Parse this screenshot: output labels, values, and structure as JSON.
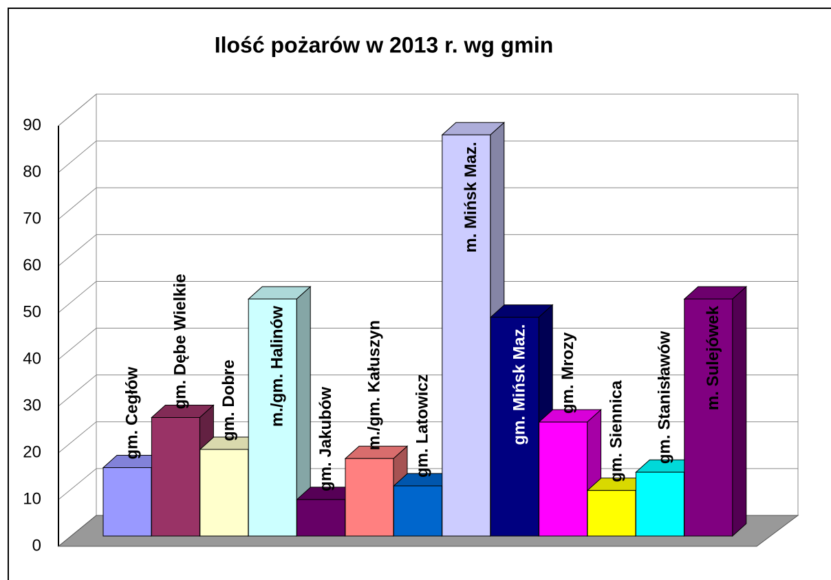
{
  "chart_data": {
    "type": "bar",
    "title": "Ilość  pożarów w 2013 r. wg gmin",
    "categories": [
      "gm. Cegłów",
      "gm. Dębe Wielkie",
      "gm. Dobre",
      "m./gm. Halinów",
      "gm. Jakubów",
      "m./gm. Kałuszyn",
      "gm. Latowicz",
      "m.  Mińsk Maz.",
      "gm. Mińsk Maz.",
      "gm. Mrozy",
      "gm. Siennica",
      "gm. Stanisławów",
      "m. Sulejówek"
    ],
    "values": [
      15,
      26,
      19,
      52,
      8,
      17,
      11,
      88,
      48,
      25,
      10,
      14,
      52
    ],
    "colors": [
      "#9999ff",
      "#993366",
      "#ffffcc",
      "#ccffff",
      "#660066",
      "#ff8080",
      "#0066cc",
      "#ccccff",
      "#000080",
      "#ff00ff",
      "#ffff00",
      "#00ffff",
      "#800080"
    ],
    "ylim": [
      0,
      90
    ],
    "yticks": [
      0,
      10,
      20,
      30,
      40,
      50,
      60,
      70,
      80,
      90
    ],
    "grid": true
  }
}
